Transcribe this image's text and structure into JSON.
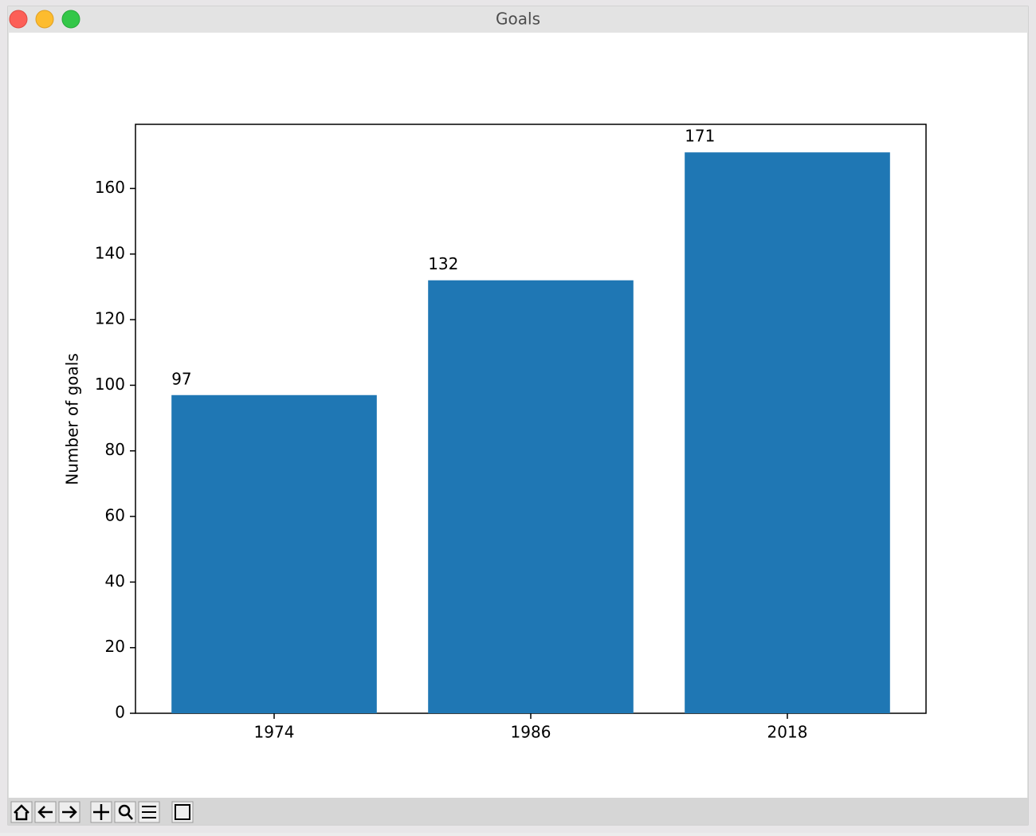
{
  "window": {
    "title": "Goals"
  },
  "chart_data": {
    "type": "bar",
    "categories": [
      "1974",
      "1986",
      "2018"
    ],
    "values": [
      97,
      132,
      171
    ],
    "color": "#1f77b4",
    "ylabel": "Number of goals",
    "ylim": [
      0,
      179.55
    ],
    "yticks": [
      0,
      20,
      40,
      60,
      80,
      100,
      120,
      140,
      160
    ],
    "value_labels_shown": true
  }
}
